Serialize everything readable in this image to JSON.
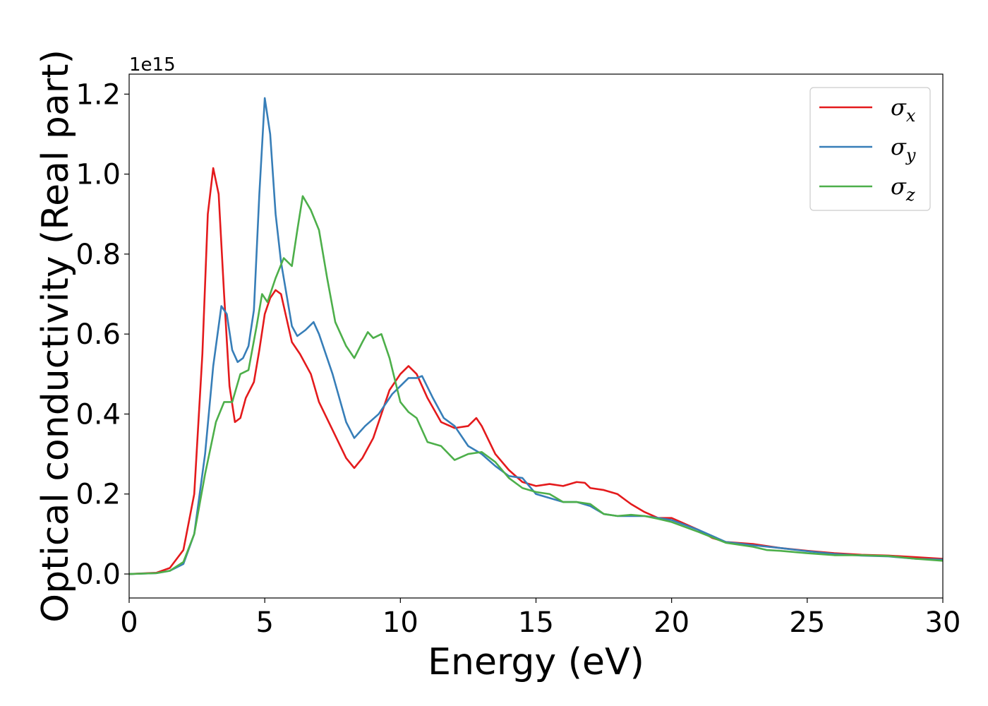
{
  "chart_data": {
    "type": "line",
    "xlabel": "Energy (eV)",
    "ylabel": "Optical conductivity (Real part)",
    "y_offset_label": "1e15",
    "xlim": [
      0,
      30
    ],
    "ylim": [
      -0.06,
      1.25
    ],
    "xticks": [
      0,
      5,
      10,
      15,
      20,
      25,
      30
    ],
    "xtick_labels": [
      "0",
      "5",
      "10",
      "15",
      "20",
      "25",
      "30"
    ],
    "yticks": [
      0.0,
      0.2,
      0.4,
      0.6,
      0.8,
      1.0,
      1.2
    ],
    "ytick_labels": [
      "0.0",
      "0.2",
      "0.4",
      "0.6",
      "0.8",
      "1.0",
      "1.2"
    ],
    "grid": false,
    "legend_position": "top-right",
    "series": [
      {
        "name": "σx",
        "legend_base": "σ",
        "legend_sub": "x",
        "color": "#e41a1c",
        "points": [
          [
            0,
            0
          ],
          [
            1,
            0.003
          ],
          [
            1.5,
            0.015
          ],
          [
            2,
            0.06
          ],
          [
            2.4,
            0.2
          ],
          [
            2.7,
            0.55
          ],
          [
            2.9,
            0.9
          ],
          [
            3.1,
            1.015
          ],
          [
            3.3,
            0.95
          ],
          [
            3.5,
            0.7
          ],
          [
            3.7,
            0.47
          ],
          [
            3.9,
            0.38
          ],
          [
            4.1,
            0.39
          ],
          [
            4.3,
            0.44
          ],
          [
            4.6,
            0.48
          ],
          [
            4.8,
            0.56
          ],
          [
            5,
            0.65
          ],
          [
            5.2,
            0.69
          ],
          [
            5.4,
            0.71
          ],
          [
            5.6,
            0.7
          ],
          [
            5.8,
            0.64
          ],
          [
            6,
            0.58
          ],
          [
            6.3,
            0.55
          ],
          [
            6.7,
            0.5
          ],
          [
            7,
            0.43
          ],
          [
            7.5,
            0.36
          ],
          [
            8,
            0.29
          ],
          [
            8.3,
            0.265
          ],
          [
            8.6,
            0.29
          ],
          [
            9,
            0.34
          ],
          [
            9.3,
            0.4
          ],
          [
            9.6,
            0.46
          ],
          [
            10,
            0.5
          ],
          [
            10.3,
            0.52
          ],
          [
            10.6,
            0.5
          ],
          [
            11,
            0.44
          ],
          [
            11.5,
            0.38
          ],
          [
            12,
            0.365
          ],
          [
            12.5,
            0.37
          ],
          [
            12.8,
            0.39
          ],
          [
            13,
            0.37
          ],
          [
            13.5,
            0.3
          ],
          [
            14,
            0.26
          ],
          [
            14.5,
            0.23
          ],
          [
            15,
            0.22
          ],
          [
            15.5,
            0.225
          ],
          [
            16,
            0.22
          ],
          [
            16.5,
            0.23
          ],
          [
            16.8,
            0.228
          ],
          [
            17,
            0.215
          ],
          [
            17.5,
            0.21
          ],
          [
            18,
            0.2
          ],
          [
            18.5,
            0.175
          ],
          [
            19,
            0.155
          ],
          [
            19.5,
            0.14
          ],
          [
            20,
            0.14
          ],
          [
            21,
            0.11
          ],
          [
            21.5,
            0.09
          ],
          [
            22,
            0.08
          ],
          [
            23,
            0.075
          ],
          [
            24,
            0.065
          ],
          [
            25,
            0.058
          ],
          [
            26,
            0.052
          ],
          [
            27,
            0.048
          ],
          [
            28,
            0.046
          ],
          [
            29,
            0.042
          ],
          [
            30,
            0.038
          ]
        ]
      },
      {
        "name": "σy",
        "legend_base": "σ",
        "legend_sub": "y",
        "color": "#377eb8",
        "points": [
          [
            0,
            0
          ],
          [
            1,
            0.002
          ],
          [
            1.5,
            0.008
          ],
          [
            2,
            0.025
          ],
          [
            2.4,
            0.1
          ],
          [
            2.8,
            0.3
          ],
          [
            3.1,
            0.52
          ],
          [
            3.4,
            0.67
          ],
          [
            3.6,
            0.65
          ],
          [
            3.8,
            0.56
          ],
          [
            4,
            0.53
          ],
          [
            4.2,
            0.54
          ],
          [
            4.4,
            0.57
          ],
          [
            4.6,
            0.66
          ],
          [
            4.8,
            0.95
          ],
          [
            5,
            1.19
          ],
          [
            5.2,
            1.1
          ],
          [
            5.4,
            0.9
          ],
          [
            5.6,
            0.78
          ],
          [
            5.8,
            0.7
          ],
          [
            6,
            0.62
          ],
          [
            6.2,
            0.595
          ],
          [
            6.5,
            0.61
          ],
          [
            6.8,
            0.63
          ],
          [
            7,
            0.6
          ],
          [
            7.5,
            0.5
          ],
          [
            8,
            0.38
          ],
          [
            8.3,
            0.34
          ],
          [
            8.7,
            0.37
          ],
          [
            9.2,
            0.4
          ],
          [
            9.7,
            0.45
          ],
          [
            10,
            0.47
          ],
          [
            10.3,
            0.49
          ],
          [
            10.6,
            0.49
          ],
          [
            10.8,
            0.495
          ],
          [
            11.2,
            0.44
          ],
          [
            11.6,
            0.39
          ],
          [
            12,
            0.37
          ],
          [
            12.5,
            0.32
          ],
          [
            13,
            0.3
          ],
          [
            13.5,
            0.27
          ],
          [
            14,
            0.245
          ],
          [
            14.5,
            0.24
          ],
          [
            15,
            0.2
          ],
          [
            15.5,
            0.19
          ],
          [
            16,
            0.18
          ],
          [
            16.5,
            0.18
          ],
          [
            17,
            0.17
          ],
          [
            17.5,
            0.15
          ],
          [
            18,
            0.145
          ],
          [
            18.5,
            0.145
          ],
          [
            19,
            0.145
          ],
          [
            19.5,
            0.14
          ],
          [
            20,
            0.135
          ],
          [
            21,
            0.11
          ],
          [
            22,
            0.08
          ],
          [
            23,
            0.072
          ],
          [
            24,
            0.065
          ],
          [
            25,
            0.057
          ],
          [
            26,
            0.05
          ],
          [
            27,
            0.046
          ],
          [
            28,
            0.044
          ],
          [
            29,
            0.038
          ],
          [
            30,
            0.036
          ]
        ]
      },
      {
        "name": "σz",
        "legend_base": "σ",
        "legend_sub": "z",
        "color": "#4daf4a",
        "points": [
          [
            0,
            0
          ],
          [
            1,
            0.002
          ],
          [
            1.5,
            0.008
          ],
          [
            2,
            0.03
          ],
          [
            2.4,
            0.1
          ],
          [
            2.8,
            0.25
          ],
          [
            3.2,
            0.38
          ],
          [
            3.5,
            0.43
          ],
          [
            3.8,
            0.43
          ],
          [
            4.1,
            0.5
          ],
          [
            4.4,
            0.51
          ],
          [
            4.7,
            0.62
          ],
          [
            4.9,
            0.7
          ],
          [
            5.1,
            0.68
          ],
          [
            5.4,
            0.74
          ],
          [
            5.7,
            0.79
          ],
          [
            6,
            0.77
          ],
          [
            6.2,
            0.86
          ],
          [
            6.4,
            0.945
          ],
          [
            6.7,
            0.91
          ],
          [
            7,
            0.86
          ],
          [
            7.3,
            0.74
          ],
          [
            7.6,
            0.63
          ],
          [
            8,
            0.57
          ],
          [
            8.3,
            0.54
          ],
          [
            8.6,
            0.58
          ],
          [
            8.8,
            0.605
          ],
          [
            9,
            0.59
          ],
          [
            9.3,
            0.6
          ],
          [
            9.6,
            0.54
          ],
          [
            10,
            0.43
          ],
          [
            10.3,
            0.405
          ],
          [
            10.6,
            0.39
          ],
          [
            11,
            0.33
          ],
          [
            11.5,
            0.32
          ],
          [
            12,
            0.285
          ],
          [
            12.5,
            0.3
          ],
          [
            13,
            0.305
          ],
          [
            13.5,
            0.28
          ],
          [
            14,
            0.24
          ],
          [
            14.5,
            0.215
          ],
          [
            15,
            0.205
          ],
          [
            15.5,
            0.2
          ],
          [
            16,
            0.18
          ],
          [
            16.5,
            0.18
          ],
          [
            17,
            0.175
          ],
          [
            17.5,
            0.15
          ],
          [
            18,
            0.145
          ],
          [
            18.5,
            0.148
          ],
          [
            19,
            0.145
          ],
          [
            19.5,
            0.138
          ],
          [
            20,
            0.13
          ],
          [
            21,
            0.105
          ],
          [
            22,
            0.078
          ],
          [
            23,
            0.068
          ],
          [
            23.5,
            0.06
          ],
          [
            24,
            0.058
          ],
          [
            25,
            0.052
          ],
          [
            26,
            0.047
          ],
          [
            27,
            0.047
          ],
          [
            28,
            0.045
          ],
          [
            29,
            0.038
          ],
          [
            30,
            0.033
          ]
        ]
      }
    ]
  }
}
